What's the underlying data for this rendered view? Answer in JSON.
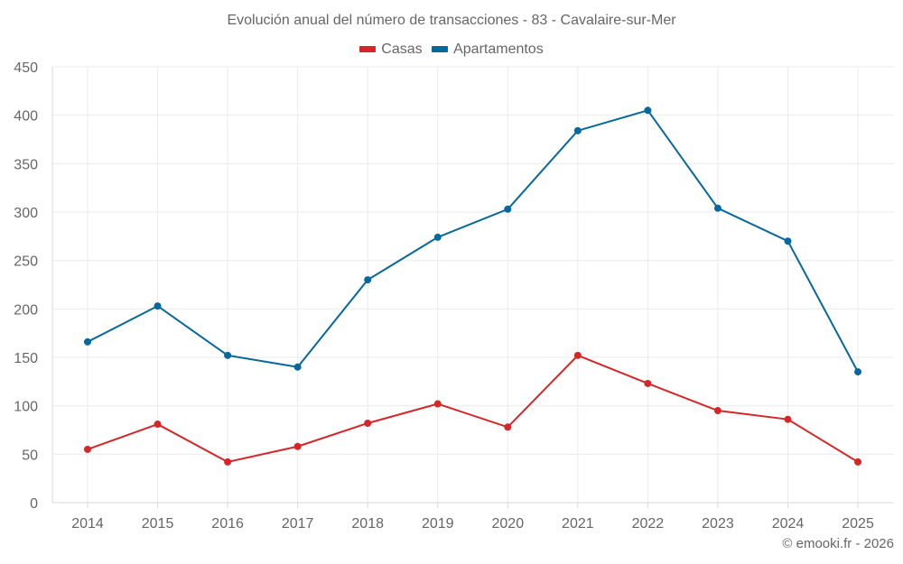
{
  "chart_data": {
    "type": "line",
    "title": "Evolución anual del número de transacciones - 83 - Cavalaire-sur-Mer",
    "xlabel": "",
    "ylabel": "",
    "categories": [
      "2014",
      "2015",
      "2016",
      "2017",
      "2018",
      "2019",
      "2020",
      "2021",
      "2022",
      "2023",
      "2024",
      "2025"
    ],
    "yticks": [
      0,
      50,
      100,
      150,
      200,
      250,
      300,
      350,
      400,
      450
    ],
    "ylim": [
      0,
      450
    ],
    "grid": true,
    "legend_position": "top-center",
    "series": [
      {
        "name": "Casas",
        "color": "#d62728",
        "values": [
          55,
          81,
          42,
          58,
          82,
          102,
          78,
          152,
          123,
          95,
          86,
          42
        ]
      },
      {
        "name": "Apartamentos",
        "color": "#06699e",
        "values": [
          166,
          203,
          152,
          140,
          230,
          274,
          303,
          384,
          405,
          304,
          270,
          135
        ]
      }
    ]
  },
  "credit": "© emooki.fr - 2026"
}
